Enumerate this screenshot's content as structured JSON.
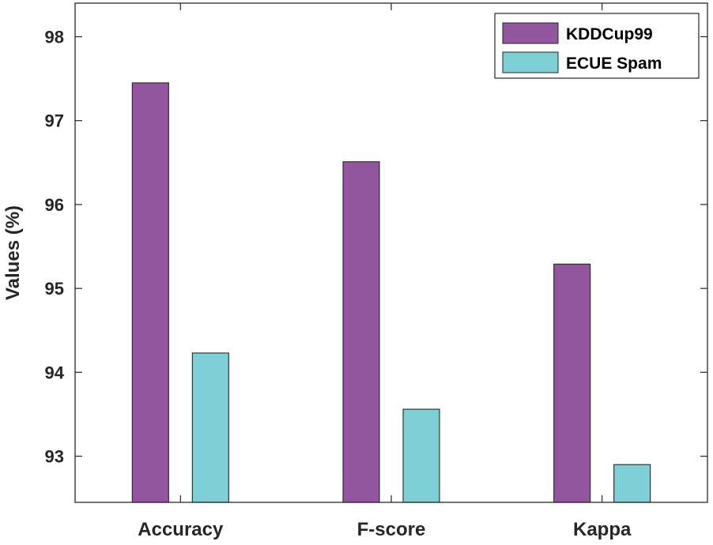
{
  "chart_data": {
    "type": "bar",
    "title": "",
    "xlabel": "",
    "ylabel": "Values (%)",
    "categories": [
      "Accuracy",
      "F-score",
      "Kappa"
    ],
    "series": [
      {
        "name": "KDDCup99",
        "color": "#9355a0",
        "values": [
          97.45,
          96.51,
          95.29
        ]
      },
      {
        "name": "ECUE Spam",
        "color": "#7ecfd6",
        "values": [
          94.23,
          93.56,
          92.9
        ]
      }
    ],
    "ylim": [
      92.45,
      98.4
    ],
    "yticks": [
      93,
      94,
      95,
      96,
      97,
      98
    ],
    "grid": false,
    "legend_position": "top-right"
  }
}
